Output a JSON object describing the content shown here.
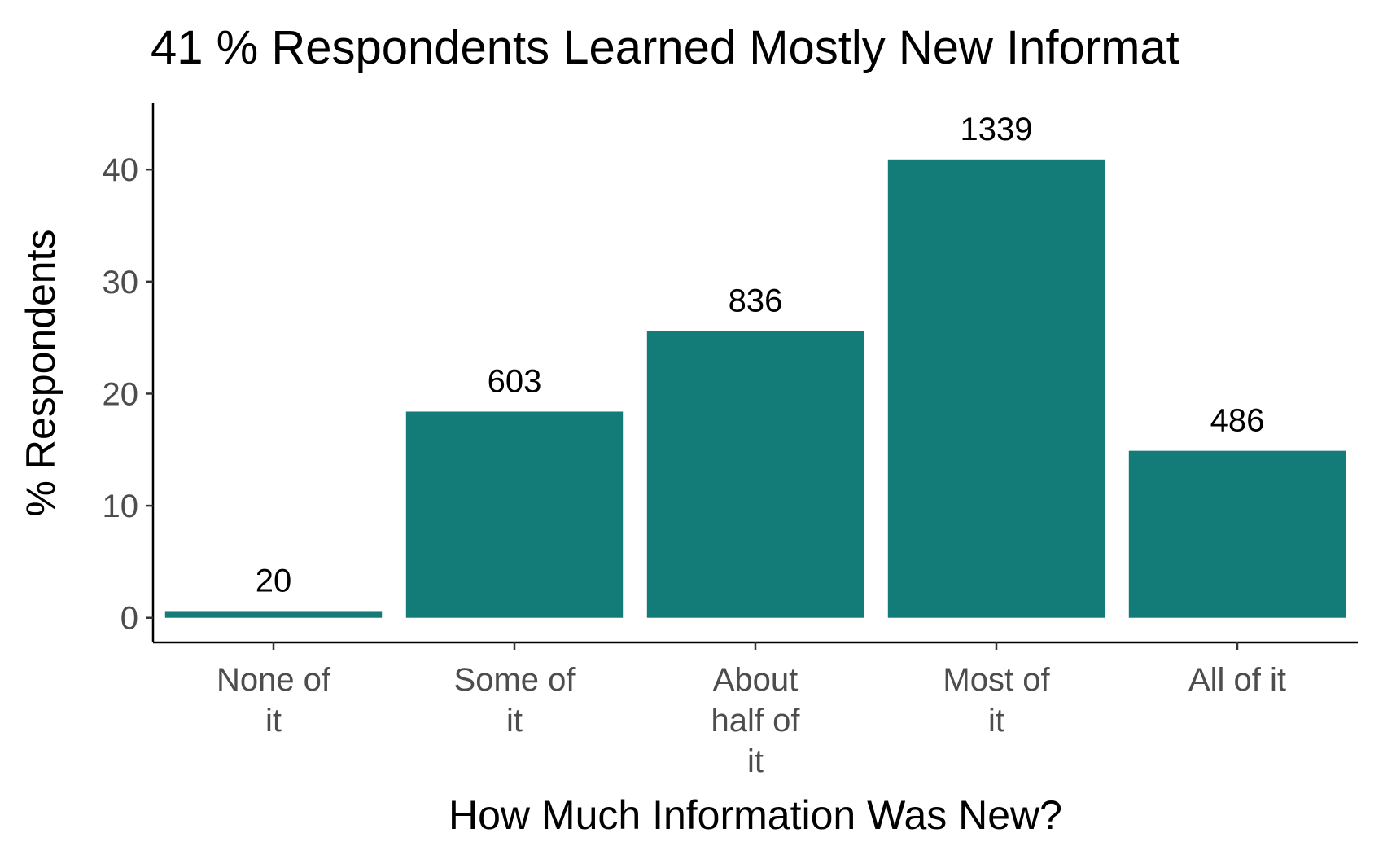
{
  "chart_data": {
    "type": "bar",
    "title": "41 % Respondents Learned Mostly New Informat",
    "xlabel": "How Much Information Was New?",
    "ylabel": "% Respondents",
    "categories": [
      [
        "None of",
        "it"
      ],
      [
        "Some of",
        "it"
      ],
      [
        "About",
        "half of",
        "it"
      ],
      [
        "Most of",
        "it"
      ],
      [
        "All of it"
      ]
    ],
    "values": [
      0.6,
      18.4,
      25.6,
      40.9,
      14.9
    ],
    "data_labels": [
      "20",
      "603",
      "836",
      "1339",
      "486"
    ],
    "ylim": [
      -2.2,
      45.9
    ],
    "yticks": [
      0,
      10,
      20,
      30,
      40
    ],
    "ytick_labels": [
      "0",
      "10",
      "20",
      "30",
      "40"
    ],
    "grid": false,
    "legend": "none",
    "bar_color": "#137c79"
  }
}
